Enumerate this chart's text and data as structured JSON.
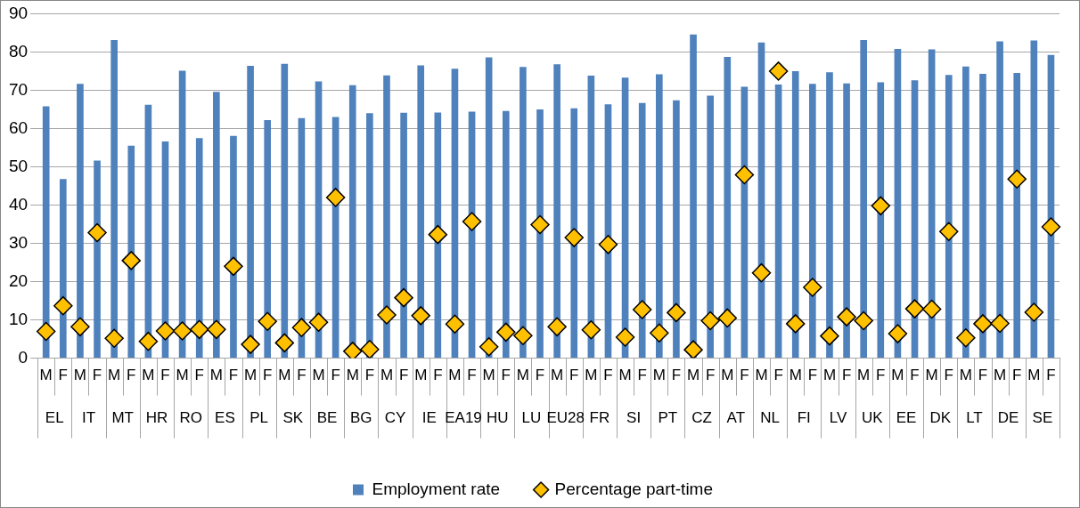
{
  "chart_data": {
    "type": "bar",
    "categories": [
      "M",
      "F",
      "M",
      "F",
      "M",
      "F",
      "M",
      "F",
      "M",
      "F",
      "M",
      "F",
      "M",
      "F",
      "M",
      "F",
      "M",
      "F",
      "M",
      "F",
      "M",
      "F",
      "M",
      "F",
      "M",
      "F",
      "M",
      "F",
      "M",
      "F",
      "M",
      "F",
      "M",
      "F",
      "M",
      "F",
      "M",
      "F",
      "M",
      "F",
      "M",
      "F",
      "M",
      "F",
      "M",
      "F",
      "M",
      "F",
      "M",
      "F",
      "M",
      "F",
      "M",
      "F",
      "M",
      "F",
      "M",
      "F",
      "M",
      "F"
    ],
    "series": [
      {
        "name": "Employment rate",
        "color": "#4f81bd",
        "values": [
          65.8,
          46.8,
          71.7,
          51.6,
          83.1,
          55.5,
          66.2,
          56.6,
          75.1,
          57.5,
          69.6,
          58.1,
          76.4,
          62.2,
          76.9,
          62.7,
          72.3,
          63.0,
          71.3,
          64.0,
          73.9,
          64.1,
          76.5,
          64.2,
          75.6,
          64.4,
          78.6,
          64.6,
          76.1,
          65.0,
          76.8,
          65.3,
          73.8,
          66.3,
          73.3,
          66.7,
          74.2,
          67.4,
          84.6,
          68.6,
          78.7,
          70.9,
          82.5,
          71.5,
          75.0,
          71.7,
          74.7,
          71.8,
          83.1,
          72.1,
          80.8,
          72.6,
          80.7,
          74.0,
          76.2,
          74.3,
          82.8,
          74.5,
          83.0,
          79.2
        ]
      },
      {
        "name": "Percentage part-time",
        "type": "scatter",
        "marker": "diamond",
        "color": "#ffc000",
        "values": [
          7.0,
          13.7,
          8.2,
          32.8,
          5.2,
          25.5,
          4.4,
          7.1,
          7.1,
          7.5,
          7.5,
          24.0,
          3.6,
          9.6,
          4.0,
          8.0,
          9.4,
          42.0,
          1.8,
          2.3,
          11.3,
          15.8,
          11.1,
          32.3,
          8.9,
          35.7,
          3.0,
          6.8,
          5.9,
          34.9,
          8.2,
          31.5,
          7.4,
          29.7,
          5.5,
          12.7,
          6.6,
          11.9,
          2.2,
          9.8,
          10.5,
          47.9,
          22.3,
          75.0,
          9.0,
          18.5,
          5.8,
          10.8,
          9.8,
          39.8,
          6.4,
          12.9,
          12.8,
          33.1,
          5.3,
          9.0,
          9.1,
          46.8,
          12.0,
          34.3
        ]
      }
    ],
    "annotations": [
      "EL",
      "IT",
      "MT",
      "HR",
      "RO",
      "ES",
      "PL",
      "SK",
      "BE",
      "BG",
      "CY",
      "IE",
      "EA19",
      "HU",
      "LU",
      "EU28",
      "FR",
      "SI",
      "PT",
      "CZ",
      "AT",
      "NL",
      "FI",
      "LV",
      "UK",
      "EE",
      "DK",
      "LT",
      "DE",
      "SE"
    ],
    "ylim": [
      0,
      90
    ],
    "yticks": [
      0,
      10,
      20,
      30,
      40,
      50,
      60,
      70,
      80,
      90
    ],
    "grid": "y",
    "legend": "bottom"
  }
}
